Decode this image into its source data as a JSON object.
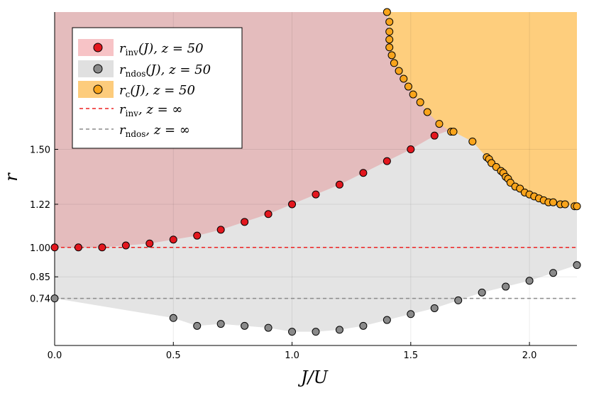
{
  "chart_data": {
    "type": "scatter",
    "xlabel": "J/U",
    "ylabel": "r",
    "xlim": [
      0.0,
      2.2
    ],
    "ylim": [
      0.5,
      2.2
    ],
    "x_ticks": [
      0.0,
      0.5,
      1.0,
      1.5,
      2.0
    ],
    "x_tick_labels": [
      "0.0",
      "0.5",
      "1.0",
      "1.5",
      "2.0"
    ],
    "y_ticks": [
      0.74,
      0.85,
      1.0,
      1.22,
      1.5
    ],
    "y_tick_labels": [
      "0.74",
      "0.85",
      "1.00",
      "1.22",
      "1.50"
    ],
    "grid": true,
    "legend_position": "top-left",
    "colors": {
      "inv_fill": "#e4bcbd",
      "ndos_fill": "#e4e4e4",
      "c_fill": "#fece7d",
      "inv_marker": "#e3171e",
      "ndos_marker": "#8a8a8a",
      "c_marker": "#f9a41b",
      "inv_line": "#ee2222",
      "ndos_line": "#8c8c8c",
      "legend_inv_swatch": "#f7c3c6",
      "legend_ndos_swatch": "#e0e0e0",
      "legend_c_swatch": "#fdcc7c",
      "grid": "#e6e6e6"
    },
    "series": [
      {
        "name": "r_inv(J), z = 50",
        "kind": "scatter",
        "x": [
          0.0,
          0.1,
          0.2,
          0.3,
          0.4,
          0.5,
          0.6,
          0.7,
          0.8,
          0.9,
          1.0,
          1.1,
          1.2,
          1.3,
          1.4,
          1.5,
          1.6
        ],
        "y": [
          1.0,
          1.0,
          1.0,
          1.01,
          1.02,
          1.04,
          1.06,
          1.09,
          1.13,
          1.17,
          1.22,
          1.27,
          1.32,
          1.38,
          1.44,
          1.5,
          1.57
        ]
      },
      {
        "name": "r_ndos(J), z = 50",
        "kind": "scatter",
        "x": [
          0.0,
          0.5,
          0.6,
          0.7,
          0.8,
          0.9,
          1.0,
          1.1,
          1.2,
          1.3,
          1.4,
          1.5,
          1.6,
          1.7,
          1.8,
          1.9,
          2.0,
          2.1,
          2.2
        ],
        "y": [
          0.74,
          0.64,
          0.6,
          0.61,
          0.6,
          0.59,
          0.57,
          0.57,
          0.58,
          0.6,
          0.63,
          0.66,
          0.69,
          0.73,
          0.77,
          0.8,
          0.83,
          0.87,
          0.91
        ]
      },
      {
        "name": "r_c(J), z = 50",
        "kind": "scatter",
        "x": [
          1.4,
          1.41,
          1.41,
          1.41,
          1.41,
          1.42,
          1.43,
          1.45,
          1.47,
          1.49,
          1.51,
          1.54,
          1.57,
          1.62,
          1.67,
          1.68,
          1.76,
          1.82,
          1.83,
          1.84,
          1.86,
          1.88,
          1.89,
          1.9,
          1.91,
          1.92,
          1.94,
          1.96,
          1.98,
          2.0,
          2.02,
          2.04,
          2.06,
          2.08,
          2.1,
          2.13,
          2.15,
          2.19,
          2.2
        ],
        "y": [
          2.2,
          2.15,
          2.1,
          2.06,
          2.02,
          1.98,
          1.94,
          1.9,
          1.86,
          1.82,
          1.78,
          1.74,
          1.69,
          1.63,
          1.59,
          1.59,
          1.54,
          1.46,
          1.45,
          1.43,
          1.41,
          1.39,
          1.38,
          1.36,
          1.35,
          1.33,
          1.31,
          1.3,
          1.28,
          1.27,
          1.26,
          1.25,
          1.24,
          1.23,
          1.23,
          1.22,
          1.22,
          1.21,
          1.21
        ]
      },
      {
        "name": "r_inv, z = ∞",
        "kind": "hline",
        "y": 1.0,
        "style": "dashed"
      },
      {
        "name": "r_ndos, z = ∞",
        "kind": "hline",
        "y": 0.74,
        "style": "dashed"
      }
    ],
    "legend": [
      {
        "symbol": "r",
        "subscript": "inv",
        "arg": "(J), z = 50"
      },
      {
        "symbol": "r",
        "subscript": "ndos",
        "arg": "(J), z = 50"
      },
      {
        "symbol": "r",
        "subscript": "c",
        "arg": "(J), z = 50"
      },
      {
        "symbol": "r",
        "subscript": "inv",
        "arg": ", z = ∞"
      },
      {
        "symbol": "r",
        "subscript": "ndos",
        "arg": ", z = ∞"
      }
    ]
  }
}
